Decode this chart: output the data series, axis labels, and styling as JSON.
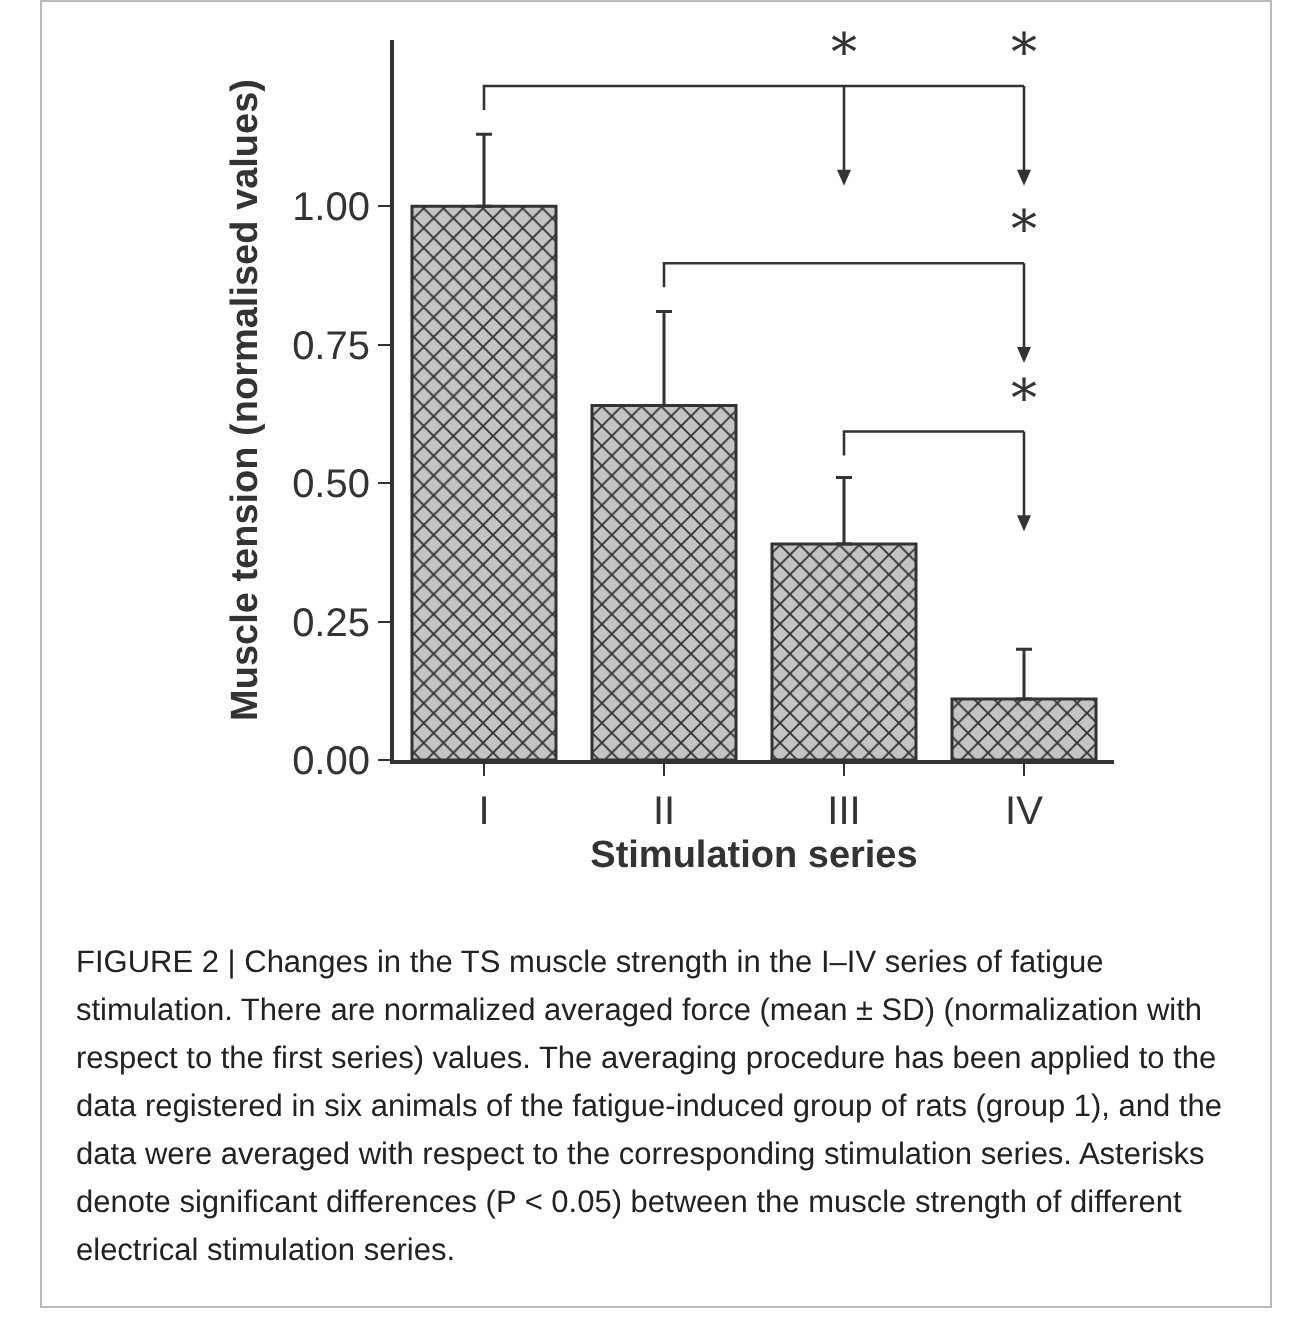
{
  "chart_data": {
    "type": "bar",
    "xlabel": "Stimulation series",
    "ylabel": "Muscle tension (normalised values)",
    "categories": [
      "I",
      "II",
      "III",
      "IV"
    ],
    "values": [
      1.0,
      0.64,
      0.39,
      0.11
    ],
    "color": "#333333",
    "errors": [
      [
        1.0,
        1.13
      ],
      [
        0.64,
        0.81
      ],
      [
        0.39,
        0.51
      ],
      [
        0.11,
        0.2
      ]
    ],
    "ylim": [
      0,
      1.3
    ],
    "yticks": [
      {
        "value": 0,
        "label": "0.00"
      },
      {
        "value": 0.25,
        "label": "0.25"
      },
      {
        "value": 0.5,
        "label": "0.50"
      },
      {
        "value": 0.75,
        "label": "0.75"
      },
      {
        "value": 1,
        "label": "1.00"
      }
    ],
    "grid": false,
    "annotations": [
      "*",
      "*",
      "*",
      "*",
      "FIGURE 2 | Changes in the TS muscle strength in the I–IV series of fatigue stimulation. There are normalized averaged force (mean ± SD) (normalization with respect to the first series) values. The averaging procedure has been applied to the data registered in six animals of the fatigue-induced group of rats (group 1), and the data were averaged with respect to the corresponding stimulation series. Asterisks denote significant differences (P < 0.05) between the muscle strength of different electrical stimulation series."
    ]
  }
}
